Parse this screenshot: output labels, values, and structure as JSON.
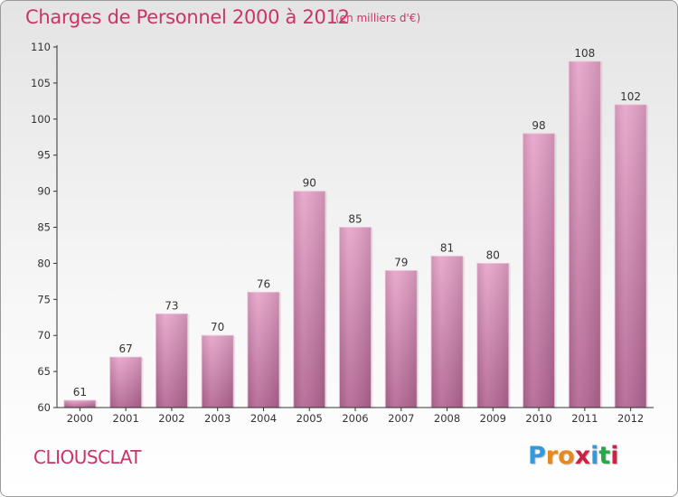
{
  "header": {
    "title": "Charges de Personnel 2000 à 2012",
    "unit": "(en milliers d'€)"
  },
  "footer": {
    "commune": "CLIOUSCLAT",
    "logo_text": "Proxiti",
    "logo_colors": [
      "#3399dd",
      "#e58a1f",
      "#e58a1f",
      "#cc2244",
      "#3399dd",
      "#22aa44",
      "#cc2244"
    ]
  },
  "colors": {
    "title": "#cc3366",
    "bar_top": "#e6a3c9",
    "bar_bottom": "#b36693",
    "axis": "#333333",
    "grid": "#dddddd"
  },
  "chart_data": {
    "type": "bar",
    "title": "Charges de Personnel 2000 à 2012",
    "subtitle": "(en milliers d'€)",
    "xlabel": "",
    "ylabel": "",
    "categories": [
      "2000",
      "2001",
      "2002",
      "2003",
      "2004",
      "2005",
      "2006",
      "2007",
      "2008",
      "2009",
      "2010",
      "2011",
      "2012"
    ],
    "values": [
      61,
      67,
      73,
      70,
      76,
      90,
      85,
      79,
      81,
      80,
      98,
      108,
      102
    ],
    "ylim": [
      60,
      110
    ],
    "yticks": [
      60,
      65,
      70,
      75,
      80,
      85,
      90,
      95,
      100,
      105,
      110
    ],
    "grid": false,
    "data_labels": true
  }
}
